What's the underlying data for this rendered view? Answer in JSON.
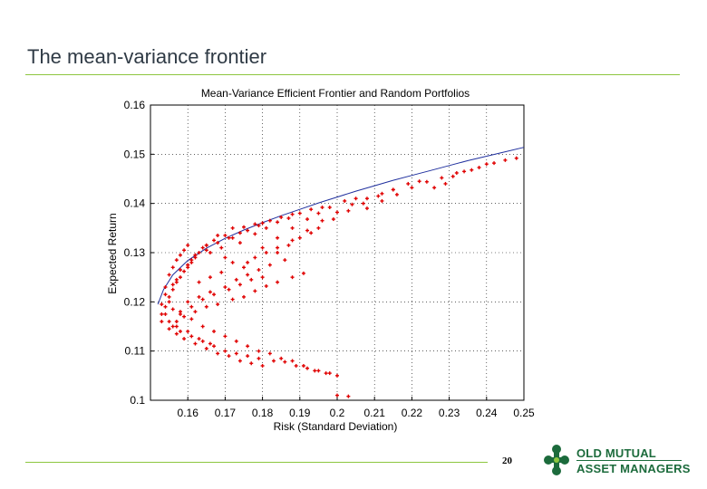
{
  "slide": {
    "title": "The mean-variance frontier",
    "page_number": "20"
  },
  "logo": {
    "line1": "OLD MUTUAL",
    "line2": "ASSET MANAGERS"
  },
  "colors": {
    "frontier": "#1f2f9e",
    "points": "#e00000",
    "rule": "#8dc63f",
    "logo_green": "#1c6b3c"
  },
  "chart_data": {
    "type": "scatter",
    "title": "Mean-Variance Efficient Frontier and Random Portfolios",
    "xlabel": "Risk (Standard Deviation)",
    "ylabel": "Expected Return",
    "xlim": [
      0.15,
      0.25
    ],
    "ylim": [
      0.1,
      0.16
    ],
    "xticks": [
      "0.16",
      "0.17",
      "0.18",
      "0.19",
      "0.2",
      "0.21",
      "0.22",
      "0.23",
      "0.24",
      "0.25"
    ],
    "yticks": [
      "0.1",
      "0.11",
      "0.12",
      "0.13",
      "0.14",
      "0.15",
      "0.16"
    ],
    "grid": true,
    "series": [
      {
        "type": "line",
        "x": [
          0.152,
          0.1535,
          0.156,
          0.16,
          0.165,
          0.17,
          0.175,
          0.18,
          0.185,
          0.19,
          0.195,
          0.2,
          0.205,
          0.21,
          0.215,
          0.22,
          0.225,
          0.23,
          0.235,
          0.24,
          0.245,
          0.25
        ],
        "y": [
          0.1195,
          0.1225,
          0.1255,
          0.1284,
          0.1309,
          0.1329,
          0.1346,
          0.1361,
          0.1375,
          0.1388,
          0.1401,
          0.1413,
          0.1425,
          0.1436,
          0.1447,
          0.1457,
          0.1467,
          0.1477,
          0.1487,
          0.1496,
          0.1505,
          0.1514
        ]
      },
      {
        "type": "scatter",
        "x": [
          0.153,
          0.154,
          0.155,
          0.156,
          0.157,
          0.158,
          0.159,
          0.16,
          0.154,
          0.155,
          0.157,
          0.159,
          0.161,
          0.162,
          0.153,
          0.156,
          0.158,
          0.16,
          0.163,
          0.165,
          0.155,
          0.157,
          0.16,
          0.162,
          0.164,
          0.167,
          0.17,
          0.154,
          0.156,
          0.158,
          0.161,
          0.165,
          0.168,
          0.171,
          0.174,
          0.16,
          0.162,
          0.165,
          0.168,
          0.172,
          0.175,
          0.178,
          0.18,
          0.166,
          0.169,
          0.172,
          0.176,
          0.179,
          0.182,
          0.185,
          0.188,
          0.17,
          0.174,
          0.178,
          0.181,
          0.184,
          0.187,
          0.19,
          0.193,
          0.196,
          0.176,
          0.18,
          0.184,
          0.188,
          0.192,
          0.195,
          0.198,
          0.202,
          0.205,
          0.184,
          0.188,
          0.192,
          0.196,
          0.2,
          0.204,
          0.208,
          0.212,
          0.215,
          0.195,
          0.199,
          0.203,
          0.207,
          0.211,
          0.215,
          0.219,
          0.222,
          0.208,
          0.212,
          0.216,
          0.22,
          0.224,
          0.228,
          0.232,
          0.236,
          0.24,
          0.242,
          0.245,
          0.248,
          0.231,
          0.234,
          0.238,
          0.226,
          0.229,
          0.163,
          0.166,
          0.169,
          0.172,
          0.175,
          0.178,
          0.181,
          0.184,
          0.187,
          0.19,
          0.193,
          0.16,
          0.163,
          0.166,
          0.17,
          0.173,
          0.176,
          0.179,
          0.182,
          0.186,
          0.158,
          0.161,
          0.164,
          0.167,
          0.171,
          0.174,
          0.177,
          0.18,
          0.157,
          0.159,
          0.162,
          0.165,
          0.168,
          0.172,
          0.175,
          0.178,
          0.181,
          0.184,
          0.188,
          0.191,
          0.156,
          0.158,
          0.161,
          0.164,
          0.167,
          0.17,
          0.173,
          0.176,
          0.179,
          0.183,
          0.186,
          0.189,
          0.192,
          0.195,
          0.198,
          0.155,
          0.157,
          0.159,
          0.162,
          0.165,
          0.168,
          0.171,
          0.174,
          0.177,
          0.18,
          0.153,
          0.155,
          0.157,
          0.16,
          0.163,
          0.166,
          0.154,
          0.156,
          0.158,
          0.161,
          0.164,
          0.167,
          0.17,
          0.173,
          0.176,
          0.179,
          0.182,
          0.185,
          0.188,
          0.191,
          0.194,
          0.197,
          0.2,
          0.2,
          0.203
        ],
        "y": [
          0.1195,
          0.123,
          0.1255,
          0.127,
          0.1285,
          0.1295,
          0.1305,
          0.1315,
          0.1175,
          0.121,
          0.124,
          0.1262,
          0.128,
          0.1295,
          0.116,
          0.1225,
          0.125,
          0.127,
          0.13,
          0.1315,
          0.12,
          0.1245,
          0.1275,
          0.129,
          0.131,
          0.1325,
          0.1335,
          0.1215,
          0.1235,
          0.1265,
          0.1285,
          0.1305,
          0.132,
          0.133,
          0.134,
          0.1275,
          0.1295,
          0.1315,
          0.1335,
          0.135,
          0.1352,
          0.1358,
          0.136,
          0.13,
          0.131,
          0.133,
          0.1345,
          0.1355,
          0.1365,
          0.1372,
          0.1378,
          0.129,
          0.132,
          0.1338,
          0.135,
          0.1362,
          0.137,
          0.138,
          0.1388,
          0.1392,
          0.128,
          0.131,
          0.133,
          0.135,
          0.1368,
          0.138,
          0.1392,
          0.1405,
          0.141,
          0.13,
          0.1325,
          0.1345,
          0.1365,
          0.1382,
          0.1398,
          0.141,
          0.142,
          0.1428,
          0.135,
          0.1368,
          0.1385,
          0.14,
          0.1415,
          0.1428,
          0.144,
          0.1445,
          0.139,
          0.1405,
          0.1418,
          0.1432,
          0.1444,
          0.1452,
          0.1462,
          0.1468,
          0.148,
          0.1482,
          0.1488,
          0.1492,
          0.1455,
          0.1465,
          0.1473,
          0.1432,
          0.144,
          0.124,
          0.125,
          0.126,
          0.128,
          0.127,
          0.129,
          0.13,
          0.131,
          0.1315,
          0.133,
          0.134,
          0.12,
          0.121,
          0.122,
          0.123,
          0.1245,
          0.1255,
          0.1265,
          0.1275,
          0.1285,
          0.118,
          0.119,
          0.1205,
          0.1215,
          0.1225,
          0.1235,
          0.1245,
          0.125,
          0.116,
          0.117,
          0.118,
          0.119,
          0.1195,
          0.1205,
          0.121,
          0.1222,
          0.1232,
          0.124,
          0.125,
          0.1258,
          0.115,
          0.114,
          0.113,
          0.112,
          0.111,
          0.11,
          0.1095,
          0.109,
          0.1085,
          0.108,
          0.1078,
          0.107,
          0.1065,
          0.106,
          0.1055,
          0.1145,
          0.1135,
          0.1125,
          0.1115,
          0.1105,
          0.1095,
          0.109,
          0.108,
          0.1075,
          0.107,
          0.1175,
          0.116,
          0.115,
          0.114,
          0.1125,
          0.1115,
          0.119,
          0.1185,
          0.1175,
          0.1165,
          0.115,
          0.114,
          0.113,
          0.112,
          0.111,
          0.11,
          0.1095,
          0.1085,
          0.108,
          0.107,
          0.106,
          0.1055,
          0.105,
          0.101,
          0.1008
        ]
      }
    ]
  }
}
